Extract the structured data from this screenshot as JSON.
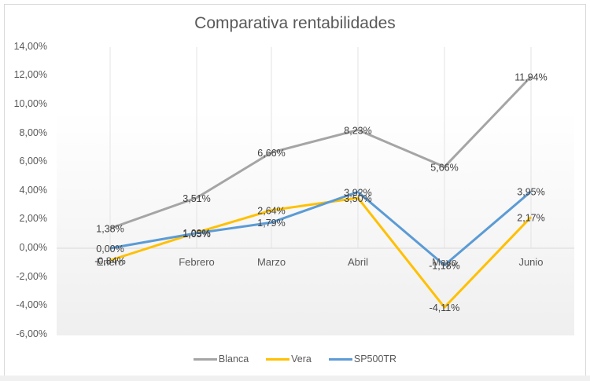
{
  "chart_data": {
    "type": "line",
    "title": "Comparativa rentabilidades",
    "xlabel": "",
    "ylabel": "",
    "categories": [
      "Enero",
      "Febrero",
      "Marzo",
      "Abril",
      "Mayo",
      "Junio"
    ],
    "series": [
      {
        "name": "Blanca",
        "color": "#a5a5a5",
        "values": [
          1.38,
          3.51,
          6.66,
          8.23,
          5.66,
          11.94
        ],
        "labels": [
          "1,38%",
          "3,51%",
          "6,66%",
          "8,23%",
          "5,66%",
          "11,94%"
        ]
      },
      {
        "name": "Vera",
        "color": "#ffc000",
        "values": [
          -0.84,
          1.09,
          2.64,
          3.5,
          -4.11,
          2.17
        ],
        "labels": [
          "-0,84%",
          "1,09%",
          "2,64%",
          "3,50%",
          "-4,11%",
          "2,17%"
        ]
      },
      {
        "name": "SP500TR",
        "color": "#5b9bd5",
        "values": [
          0.0,
          1.05,
          1.79,
          3.92,
          -1.18,
          3.95
        ],
        "labels": [
          "0,00%",
          "1,05%",
          "1,79%",
          "3,92%",
          "-1,18%",
          "3,95%"
        ]
      }
    ],
    "yticks": [
      "14,00%",
      "12,00%",
      "10,00%",
      "8,00%",
      "6,00%",
      "4,00%",
      "2,00%",
      "0,00%",
      "-2,00%",
      "-4,00%",
      "-6,00%"
    ],
    "ylim": [
      -6,
      14
    ],
    "grid": "vertical category lines",
    "legend_position": "bottom"
  }
}
